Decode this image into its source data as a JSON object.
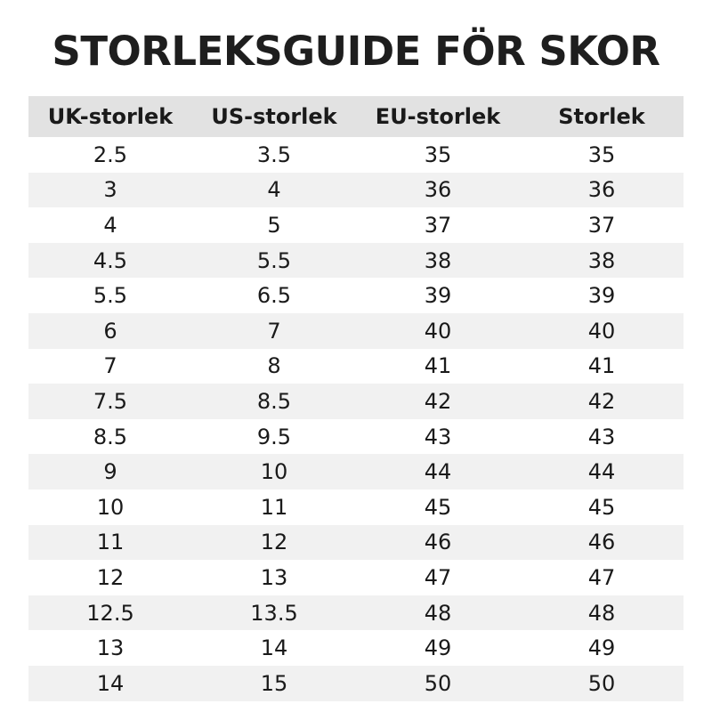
{
  "header": {
    "title": "STORLEKSGUIDE FÖR SKOR"
  },
  "table": {
    "columns": [
      "UK-storlek",
      "US-storlek",
      "EU-storlek",
      "Storlek"
    ],
    "rows": [
      [
        "2.5",
        "3.5",
        "35",
        "35"
      ],
      [
        "3",
        "4",
        "36",
        "36"
      ],
      [
        "4",
        "5",
        "37",
        "37"
      ],
      [
        "4.5",
        "5.5",
        "38",
        "38"
      ],
      [
        "5.5",
        "6.5",
        "39",
        "39"
      ],
      [
        "6",
        "7",
        "40",
        "40"
      ],
      [
        "7",
        "8",
        "41",
        "41"
      ],
      [
        "7.5",
        "8.5",
        "42",
        "42"
      ],
      [
        "8.5",
        "9.5",
        "43",
        "43"
      ],
      [
        "9",
        "10",
        "44",
        "44"
      ],
      [
        "10",
        "11",
        "45",
        "45"
      ],
      [
        "11",
        "12",
        "46",
        "46"
      ],
      [
        "12",
        "13",
        "47",
        "47"
      ],
      [
        "12.5",
        "13.5",
        "48",
        "48"
      ],
      [
        "13",
        "14",
        "49",
        "49"
      ],
      [
        "14",
        "15",
        "50",
        "50"
      ]
    ]
  }
}
